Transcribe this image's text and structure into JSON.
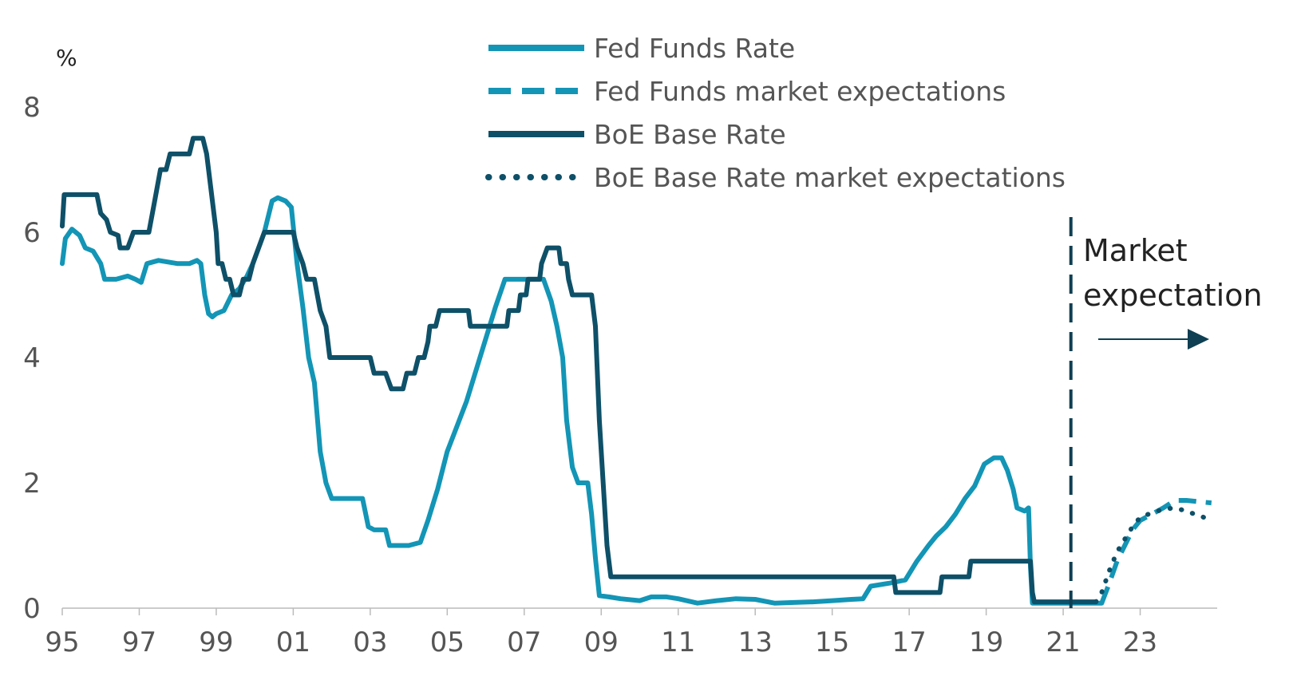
{
  "chart_data": {
    "type": "line",
    "title": "",
    "xlabel": "",
    "ylabel": "%",
    "xlim": [
      1995,
      2025
    ],
    "ylim": [
      0,
      8
    ],
    "y_ticks": [
      0,
      2,
      4,
      6,
      8
    ],
    "x_ticks": [
      {
        "value": 1995,
        "label": "95"
      },
      {
        "value": 1997,
        "label": "97"
      },
      {
        "value": 1999,
        "label": "99"
      },
      {
        "value": 2001,
        "label": "01"
      },
      {
        "value": 2003,
        "label": "03"
      },
      {
        "value": 2005,
        "label": "05"
      },
      {
        "value": 2007,
        "label": "07"
      },
      {
        "value": 2009,
        "label": "09"
      },
      {
        "value": 2011,
        "label": "11"
      },
      {
        "value": 2013,
        "label": "13"
      },
      {
        "value": 2015,
        "label": "15"
      },
      {
        "value": 2017,
        "label": "17"
      },
      {
        "value": 2019,
        "label": "19"
      },
      {
        "value": 2021,
        "label": "21"
      },
      {
        "value": 2023,
        "label": "23"
      }
    ],
    "annotation": {
      "x": 2021.2,
      "line1": "Market",
      "line2": "expectation"
    },
    "series": [
      {
        "name": "Fed Funds Rate",
        "style": "solid",
        "color": "#1395B6",
        "points": [
          [
            1995.0,
            5.5
          ],
          [
            1995.08,
            5.9
          ],
          [
            1995.25,
            6.05
          ],
          [
            1995.45,
            5.95
          ],
          [
            1995.6,
            5.75
          ],
          [
            1995.8,
            5.7
          ],
          [
            1996.0,
            5.5
          ],
          [
            1996.1,
            5.25
          ],
          [
            1996.4,
            5.25
          ],
          [
            1996.7,
            5.3
          ],
          [
            1996.9,
            5.25
          ],
          [
            1997.05,
            5.2
          ],
          [
            1997.2,
            5.5
          ],
          [
            1997.5,
            5.55
          ],
          [
            1998.0,
            5.5
          ],
          [
            1998.3,
            5.5
          ],
          [
            1998.5,
            5.55
          ],
          [
            1998.6,
            5.5
          ],
          [
            1998.7,
            5.0
          ],
          [
            1998.8,
            4.7
          ],
          [
            1998.9,
            4.65
          ],
          [
            1999.0,
            4.7
          ],
          [
            1999.2,
            4.75
          ],
          [
            1999.4,
            5.0
          ],
          [
            1999.6,
            5.1
          ],
          [
            1999.8,
            5.3
          ],
          [
            1999.95,
            5.5
          ],
          [
            2000.1,
            5.75
          ],
          [
            2000.25,
            6.0
          ],
          [
            2000.45,
            6.5
          ],
          [
            2000.6,
            6.55
          ],
          [
            2000.8,
            6.5
          ],
          [
            2000.95,
            6.4
          ],
          [
            2001.1,
            5.5
          ],
          [
            2001.25,
            4.8
          ],
          [
            2001.4,
            4.0
          ],
          [
            2001.55,
            3.6
          ],
          [
            2001.7,
            2.5
          ],
          [
            2001.85,
            2.0
          ],
          [
            2002.0,
            1.75
          ],
          [
            2002.5,
            1.75
          ],
          [
            2002.8,
            1.75
          ],
          [
            2002.95,
            1.3
          ],
          [
            2003.1,
            1.25
          ],
          [
            2003.4,
            1.25
          ],
          [
            2003.5,
            1.0
          ],
          [
            2004.0,
            1.0
          ],
          [
            2004.3,
            1.05
          ],
          [
            2004.5,
            1.4
          ],
          [
            2004.75,
            1.9
          ],
          [
            2005.0,
            2.5
          ],
          [
            2005.25,
            2.9
          ],
          [
            2005.5,
            3.3
          ],
          [
            2005.75,
            3.8
          ],
          [
            2006.0,
            4.3
          ],
          [
            2006.25,
            4.8
          ],
          [
            2006.5,
            5.25
          ],
          [
            2007.0,
            5.25
          ],
          [
            2007.5,
            5.25
          ],
          [
            2007.7,
            4.9
          ],
          [
            2007.85,
            4.5
          ],
          [
            2008.0,
            4.0
          ],
          [
            2008.1,
            3.0
          ],
          [
            2008.25,
            2.25
          ],
          [
            2008.4,
            2.0
          ],
          [
            2008.65,
            2.0
          ],
          [
            2008.75,
            1.5
          ],
          [
            2008.85,
            0.8
          ],
          [
            2008.95,
            0.2
          ],
          [
            2009.2,
            0.18
          ],
          [
            2009.5,
            0.15
          ],
          [
            2010.0,
            0.12
          ],
          [
            2010.3,
            0.18
          ],
          [
            2010.7,
            0.18
          ],
          [
            2011.0,
            0.15
          ],
          [
            2011.5,
            0.08
          ],
          [
            2012.0,
            0.12
          ],
          [
            2012.5,
            0.15
          ],
          [
            2013.0,
            0.14
          ],
          [
            2013.5,
            0.08
          ],
          [
            2014.0,
            0.09
          ],
          [
            2014.5,
            0.1
          ],
          [
            2015.0,
            0.12
          ],
          [
            2015.5,
            0.14
          ],
          [
            2015.8,
            0.15
          ],
          [
            2016.0,
            0.35
          ],
          [
            2016.5,
            0.4
          ],
          [
            2016.9,
            0.45
          ],
          [
            2017.2,
            0.75
          ],
          [
            2017.5,
            1.0
          ],
          [
            2017.7,
            1.15
          ],
          [
            2017.95,
            1.3
          ],
          [
            2018.2,
            1.5
          ],
          [
            2018.45,
            1.75
          ],
          [
            2018.7,
            1.95
          ],
          [
            2018.95,
            2.3
          ],
          [
            2019.2,
            2.4
          ],
          [
            2019.4,
            2.4
          ],
          [
            2019.55,
            2.2
          ],
          [
            2019.7,
            1.9
          ],
          [
            2019.8,
            1.6
          ],
          [
            2020.0,
            1.55
          ],
          [
            2020.1,
            1.6
          ],
          [
            2020.15,
            0.65
          ],
          [
            2020.2,
            0.08
          ],
          [
            2020.5,
            0.08
          ],
          [
            2021.0,
            0.08
          ],
          [
            2021.5,
            0.08
          ],
          [
            2022.0,
            0.08
          ]
        ]
      },
      {
        "name": "Fed Funds market expectations",
        "style": "dashed",
        "color": "#1395B6",
        "points": [
          [
            2022.0,
            0.08
          ],
          [
            2022.2,
            0.4
          ],
          [
            2022.4,
            0.75
          ],
          [
            2022.6,
            1.0
          ],
          [
            2022.8,
            1.25
          ],
          [
            2023.0,
            1.4
          ],
          [
            2023.3,
            1.5
          ],
          [
            2023.6,
            1.6
          ],
          [
            2023.9,
            1.72
          ],
          [
            2024.2,
            1.72
          ],
          [
            2024.5,
            1.7
          ],
          [
            2024.85,
            1.68
          ]
        ]
      },
      {
        "name": "BoE Base Rate",
        "style": "solid",
        "color": "#0E5068",
        "points": [
          [
            1995.0,
            6.1
          ],
          [
            1995.05,
            6.6
          ],
          [
            1995.5,
            6.6
          ],
          [
            1995.9,
            6.6
          ],
          [
            1996.0,
            6.3
          ],
          [
            1996.15,
            6.2
          ],
          [
            1996.25,
            6.0
          ],
          [
            1996.45,
            5.95
          ],
          [
            1996.5,
            5.75
          ],
          [
            1996.7,
            5.75
          ],
          [
            1996.85,
            6.0
          ],
          [
            1997.0,
            6.0
          ],
          [
            1997.25,
            6.0
          ],
          [
            1997.4,
            6.5
          ],
          [
            1997.55,
            7.0
          ],
          [
            1997.7,
            7.0
          ],
          [
            1997.8,
            7.25
          ],
          [
            1998.0,
            7.25
          ],
          [
            1998.3,
            7.25
          ],
          [
            1998.4,
            7.5
          ],
          [
            1998.65,
            7.5
          ],
          [
            1998.75,
            7.25
          ],
          [
            1998.85,
            6.75
          ],
          [
            1998.95,
            6.25
          ],
          [
            1999.0,
            6.0
          ],
          [
            1999.05,
            5.5
          ],
          [
            1999.15,
            5.5
          ],
          [
            1999.25,
            5.25
          ],
          [
            1999.35,
            5.25
          ],
          [
            1999.45,
            5.0
          ],
          [
            1999.6,
            5.0
          ],
          [
            1999.7,
            5.25
          ],
          [
            1999.85,
            5.25
          ],
          [
            1999.95,
            5.5
          ],
          [
            2000.1,
            5.75
          ],
          [
            2000.25,
            6.0
          ],
          [
            2001.0,
            6.0
          ],
          [
            2001.1,
            5.75
          ],
          [
            2001.25,
            5.5
          ],
          [
            2001.35,
            5.25
          ],
          [
            2001.55,
            5.25
          ],
          [
            2001.7,
            4.75
          ],
          [
            2001.85,
            4.5
          ],
          [
            2001.95,
            4.0
          ],
          [
            2002.5,
            4.0
          ],
          [
            2003.0,
            4.0
          ],
          [
            2003.1,
            3.75
          ],
          [
            2003.4,
            3.75
          ],
          [
            2003.55,
            3.5
          ],
          [
            2003.85,
            3.5
          ],
          [
            2003.95,
            3.75
          ],
          [
            2004.15,
            3.75
          ],
          [
            2004.25,
            4.0
          ],
          [
            2004.4,
            4.0
          ],
          [
            2004.5,
            4.25
          ],
          [
            2004.55,
            4.5
          ],
          [
            2004.7,
            4.5
          ],
          [
            2004.8,
            4.75
          ],
          [
            2005.55,
            4.75
          ],
          [
            2005.6,
            4.5
          ],
          [
            2006.55,
            4.5
          ],
          [
            2006.6,
            4.75
          ],
          [
            2006.85,
            4.75
          ],
          [
            2006.9,
            5.0
          ],
          [
            2007.05,
            5.0
          ],
          [
            2007.1,
            5.25
          ],
          [
            2007.4,
            5.25
          ],
          [
            2007.45,
            5.5
          ],
          [
            2007.6,
            5.75
          ],
          [
            2007.9,
            5.75
          ],
          [
            2007.95,
            5.5
          ],
          [
            2008.1,
            5.5
          ],
          [
            2008.15,
            5.25
          ],
          [
            2008.25,
            5.0
          ],
          [
            2008.75,
            5.0
          ],
          [
            2008.85,
            4.5
          ],
          [
            2008.95,
            3.0
          ],
          [
            2009.05,
            2.0
          ],
          [
            2009.15,
            1.0
          ],
          [
            2009.25,
            0.5
          ],
          [
            2010.0,
            0.5
          ],
          [
            2012.0,
            0.5
          ],
          [
            2014.0,
            0.5
          ],
          [
            2016.0,
            0.5
          ],
          [
            2016.6,
            0.5
          ],
          [
            2016.65,
            0.25
          ],
          [
            2017.8,
            0.25
          ],
          [
            2017.85,
            0.5
          ],
          [
            2018.55,
            0.5
          ],
          [
            2018.6,
            0.75
          ],
          [
            2019.5,
            0.75
          ],
          [
            2020.15,
            0.75
          ],
          [
            2020.2,
            0.25
          ],
          [
            2020.25,
            0.1
          ],
          [
            2021.0,
            0.1
          ],
          [
            2021.5,
            0.1
          ],
          [
            2021.85,
            0.1
          ]
        ]
      },
      {
        "name": "BoE Base Rate market expectations",
        "style": "dotted",
        "color": "#0E5068",
        "points": [
          [
            2021.85,
            0.1
          ],
          [
            2022.0,
            0.25
          ],
          [
            2022.2,
            0.6
          ],
          [
            2022.4,
            0.9
          ],
          [
            2022.6,
            1.1
          ],
          [
            2022.8,
            1.3
          ],
          [
            2023.0,
            1.45
          ],
          [
            2023.3,
            1.52
          ],
          [
            2023.6,
            1.58
          ],
          [
            2023.9,
            1.6
          ],
          [
            2024.2,
            1.55
          ],
          [
            2024.5,
            1.48
          ],
          [
            2024.8,
            1.42
          ]
        ]
      }
    ],
    "legend": {
      "position": "top-center",
      "entries": [
        "Fed Funds Rate",
        " Fed Funds market expectations",
        "BoE Base Rate",
        "BoE Base Rate market expectations"
      ]
    }
  }
}
